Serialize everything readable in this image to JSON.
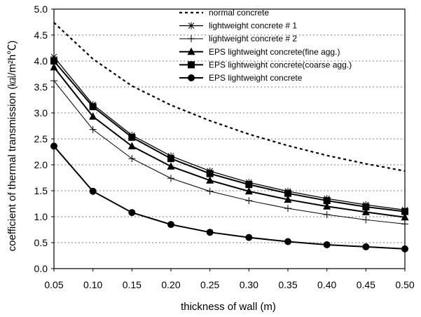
{
  "chart_data": {
    "type": "line",
    "xlabel": "thickness of wall (m)",
    "ylabel": "coefficient of thermal transmission (㎉/m²h℃)",
    "xlim": [
      0.05,
      0.5
    ],
    "ylim": [
      0.0,
      5.0
    ],
    "x_ticks": [
      "0.05",
      "0.10",
      "0.15",
      "0.20",
      "0.25",
      "0.30",
      "0.35",
      "0.40",
      "0.45",
      "0.50"
    ],
    "y_ticks": [
      "0.0",
      "0.5",
      "1.0",
      "1.5",
      "2.0",
      "2.5",
      "3.0",
      "3.5",
      "4.0",
      "4.5",
      "5.0"
    ],
    "grid": "horizontal dashed",
    "legend_position": "top-right",
    "x": [
      0.05,
      0.1,
      0.15,
      0.2,
      0.25,
      0.3,
      0.35,
      0.4,
      0.45,
      0.5
    ],
    "series": [
      {
        "name": "normal concrete",
        "marker": "none",
        "line": "dashed",
        "values": [
          4.74,
          4.04,
          3.52,
          3.15,
          2.85,
          2.59,
          2.37,
          2.18,
          2.02,
          1.88
        ]
      },
      {
        "name": "lightweight concrete # 1",
        "marker": "asterisk",
        "line": "solid",
        "values": [
          4.08,
          3.16,
          2.57,
          2.17,
          1.88,
          1.66,
          1.49,
          1.35,
          1.23,
          1.13
        ]
      },
      {
        "name": "lightweight concrete # 2",
        "marker": "plus",
        "line": "solid",
        "values": [
          3.62,
          2.68,
          2.12,
          1.74,
          1.49,
          1.31,
          1.16,
          1.04,
          0.94,
          0.86
        ]
      },
      {
        "name": "EPS lightweight concrete(fine agg.)",
        "marker": "triangle",
        "line": "solid",
        "values": [
          3.88,
          2.93,
          2.36,
          1.97,
          1.7,
          1.49,
          1.33,
          1.2,
          1.09,
          0.99
        ]
      },
      {
        "name": "EPS lightweight concrete(coarse agg.)",
        "marker": "square",
        "line": "solid",
        "values": [
          4.0,
          3.12,
          2.53,
          2.12,
          1.83,
          1.62,
          1.45,
          1.31,
          1.19,
          1.1
        ]
      },
      {
        "name": "EPS lightweight concrete",
        "marker": "circle",
        "line": "solid",
        "values": [
          2.36,
          1.49,
          1.08,
          0.85,
          0.7,
          0.6,
          0.52,
          0.46,
          0.42,
          0.38
        ]
      }
    ]
  }
}
